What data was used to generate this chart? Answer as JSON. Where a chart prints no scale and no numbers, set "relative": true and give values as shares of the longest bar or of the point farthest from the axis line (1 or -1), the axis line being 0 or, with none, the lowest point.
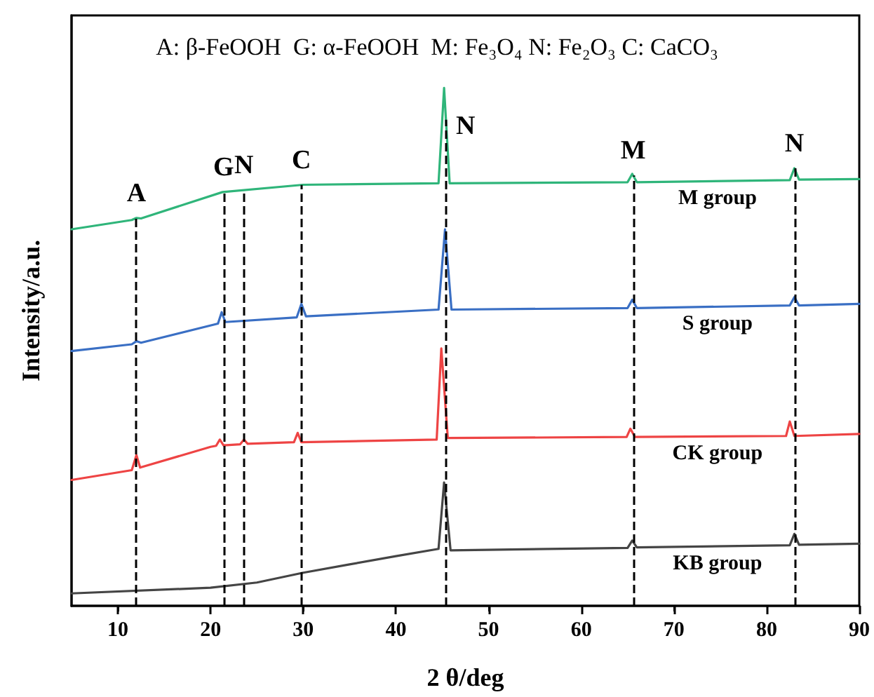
{
  "chart_data": {
    "type": "line",
    "title": "A: β-FeOOH  G: α-FeOOH  M: Fe₃O₄ N: Fe₂O₃ C: CaCO₃",
    "xlabel": "2 θ/deg",
    "ylabel": "Intensity/a.u.",
    "relative": true,
    "xlim": [
      5,
      90
    ],
    "xticks": [
      10,
      20,
      30,
      40,
      50,
      60,
      70,
      80,
      90
    ],
    "legend": false,
    "grid": false,
    "marker": "none",
    "series": [
      {
        "name": "M group",
        "color": "#2fb57a",
        "x": [
          5,
          11.5,
          12,
          12.5,
          21.3,
          30,
          44.6,
          45.2,
          45.8,
          65,
          65.5,
          66,
          82.5,
          83,
          83.5,
          90
        ],
        "values": [
          0.727,
          0.745,
          0.749,
          0.748,
          0.799,
          0.813,
          0.816,
          1.0,
          0.816,
          0.818,
          0.834,
          0.818,
          0.822,
          0.845,
          0.823,
          0.824
        ]
      },
      {
        "name": "S group",
        "color": "#3a6fc4",
        "x": [
          5,
          11.5,
          12,
          12.5,
          20.8,
          21.2,
          21.6,
          29.3,
          29.8,
          30.3,
          44.6,
          45.3,
          46,
          65,
          65.5,
          66,
          82.5,
          83,
          83.5,
          90
        ],
        "values": [
          0.492,
          0.505,
          0.511,
          0.508,
          0.545,
          0.567,
          0.548,
          0.557,
          0.583,
          0.559,
          0.572,
          0.727,
          0.572,
          0.575,
          0.591,
          0.575,
          0.58,
          0.596,
          0.58,
          0.583
        ]
      },
      {
        "name": "CK group",
        "color": "#ee4444",
        "x": [
          5,
          11.5,
          12,
          12.4,
          20,
          20.6,
          21,
          21.4,
          23.2,
          23.6,
          24,
          29,
          29.4,
          29.8,
          44.4,
          44.9,
          45.6,
          64.9,
          65.3,
          65.8,
          82.1,
          82.5,
          83,
          90
        ],
        "values": [
          0.243,
          0.262,
          0.291,
          0.267,
          0.307,
          0.309,
          0.321,
          0.31,
          0.312,
          0.321,
          0.313,
          0.316,
          0.334,
          0.316,
          0.321,
          0.497,
          0.324,
          0.326,
          0.342,
          0.326,
          0.328,
          0.356,
          0.328,
          0.332
        ]
      },
      {
        "name": "KB group",
        "color": "#454545",
        "x": [
          5,
          20,
          25,
          30,
          35,
          40,
          44.6,
          45.2,
          45.9,
          65,
          65.5,
          66,
          82.5,
          83,
          83.5,
          90
        ],
        "values": [
          0.024,
          0.035,
          0.045,
          0.064,
          0.08,
          0.096,
          0.11,
          0.238,
          0.107,
          0.112,
          0.126,
          0.113,
          0.117,
          0.139,
          0.118,
          0.12
        ]
      }
    ],
    "ref_lines": [
      {
        "axis": "x",
        "value": 12,
        "label": "A"
      },
      {
        "axis": "x",
        "value": 21.4,
        "label": "G"
      },
      {
        "axis": "x",
        "value": 23.6,
        "label": "N"
      },
      {
        "axis": "x",
        "value": 29.8,
        "label": "C"
      },
      {
        "axis": "x",
        "value": 45.4,
        "label": "N"
      },
      {
        "axis": "x",
        "value": 65.6,
        "label": "M"
      },
      {
        "axis": "x",
        "value": 83,
        "label": "N"
      }
    ],
    "line_style": "solid"
  }
}
